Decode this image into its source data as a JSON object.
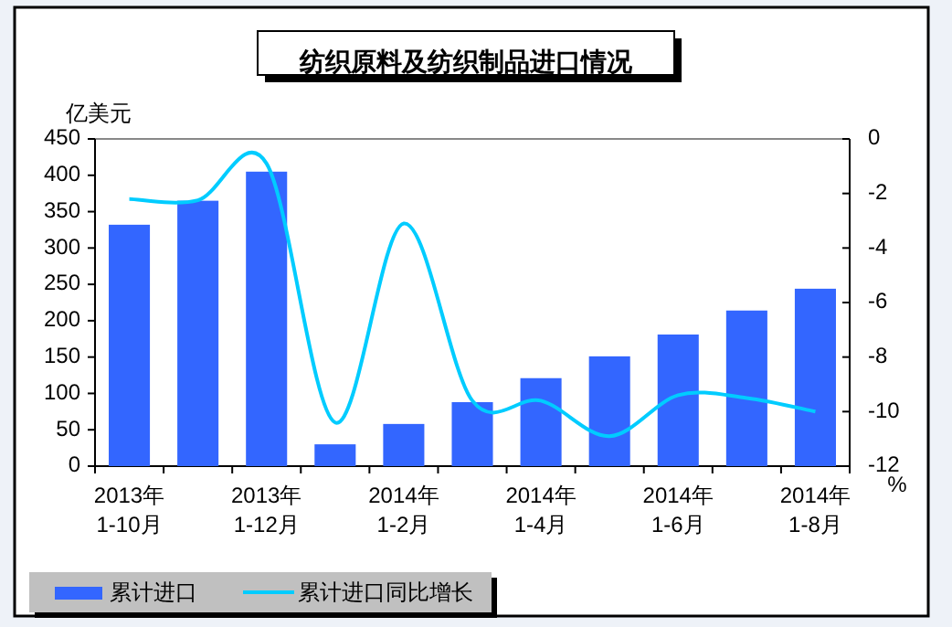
{
  "chart_data": {
    "type": "bar",
    "title": "纺织原料及纺织制品进口情况",
    "ylabel": "亿美元",
    "y2label": "%",
    "categories": [
      "2013年\n1-10月",
      null,
      "2013年\n1-12月",
      null,
      "2014年\n1-2月",
      null,
      "2014年\n1-4月",
      null,
      "2014年\n1-6月",
      null,
      "2014年\n1-8月"
    ],
    "series": [
      {
        "name": "累计进口",
        "color": "#3366ff",
        "values": [
          332,
          365,
          405,
          30,
          58,
          88,
          121,
          151,
          181,
          214,
          244
        ]
      },
      {
        "name": "累计进口同比增长",
        "type": "line",
        "axis": "y2",
        "color": "#00ccff",
        "values": [
          -2.2,
          -2.25,
          -0.9,
          -10.4,
          -3.1,
          -9.6,
          -9.6,
          -10.9,
          -9.4,
          -9.5,
          -10.0
        ]
      }
    ],
    "ylim": [
      0,
      450
    ],
    "yticks": [
      0,
      50,
      100,
      150,
      200,
      250,
      300,
      350,
      400,
      450
    ],
    "y2lim": [
      -12,
      0
    ],
    "y2ticks": [
      -12,
      -10,
      -8,
      -6,
      -4,
      -2,
      0
    ],
    "legend": "bottom",
    "marker": "none"
  }
}
